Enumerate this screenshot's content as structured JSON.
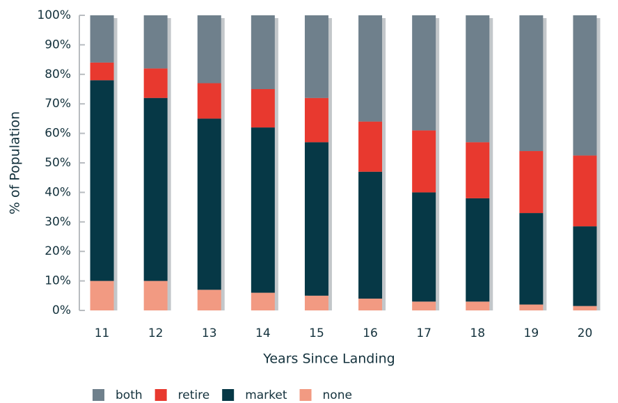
{
  "chart_data": {
    "type": "stacked_bar",
    "x_label": "Years Since Landing",
    "y_label": "% of Population",
    "categories": [
      "11",
      "12",
      "13",
      "14",
      "15",
      "16",
      "17",
      "18",
      "19",
      "20"
    ],
    "series": [
      {
        "name": "none",
        "color": "#f29a82",
        "values": [
          10,
          10,
          7,
          6,
          5,
          4,
          3,
          3,
          2,
          1.5
        ]
      },
      {
        "name": "market",
        "color": "#063846",
        "values": [
          68,
          62,
          58,
          56,
          52,
          43,
          37,
          35,
          31,
          27
        ]
      },
      {
        "name": "retire",
        "color": "#e8392f",
        "values": [
          6,
          10,
          12,
          13,
          15,
          17,
          21,
          19,
          21,
          24
        ]
      },
      {
        "name": "both",
        "color": "#6f808c",
        "values": [
          16,
          18,
          23,
          25,
          28,
          36,
          39,
          43,
          46,
          47.5
        ]
      }
    ],
    "legend_order": [
      "both",
      "retire",
      "market",
      "none"
    ],
    "ylim": [
      0,
      100
    ],
    "yticks": [
      {
        "value": 0,
        "label": "0%"
      },
      {
        "value": 10,
        "label": "10%"
      },
      {
        "value": 20,
        "label": "20%"
      },
      {
        "value": 30,
        "label": "30%"
      },
      {
        "value": 40,
        "label": "40%"
      },
      {
        "value": 50,
        "label": "50%"
      },
      {
        "value": 60,
        "label": "60%"
      },
      {
        "value": 70,
        "label": "70%"
      },
      {
        "value": 80,
        "label": "80%"
      },
      {
        "value": 90,
        "label": "90%"
      },
      {
        "value": 100,
        "label": "100%"
      }
    ],
    "legend_position": "bottom"
  }
}
